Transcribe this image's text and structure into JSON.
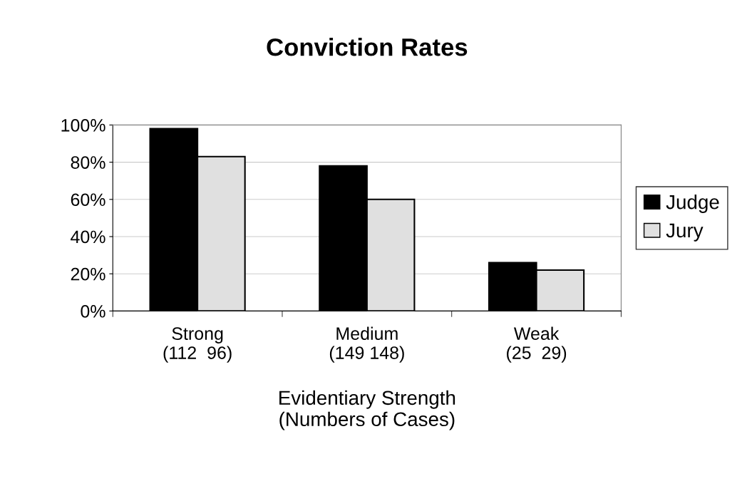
{
  "chart_data": {
    "type": "bar",
    "title": "Conviction Rates",
    "xlabel": "Evidentiary Strength\n(Numbers of Cases)",
    "categories": [
      "Strong\n(112  96)",
      "Medium\n(149 148)",
      "Weak\n(25  29)"
    ],
    "series": [
      {
        "name": "Judge",
        "color": "#000000",
        "values": [
          98,
          78,
          26
        ]
      },
      {
        "name": "Jury",
        "color": "#e0e0e0",
        "values": [
          83,
          60,
          22
        ]
      }
    ],
    "ylim": [
      0,
      100
    ],
    "yticks": [
      {
        "value": 0,
        "label": "0%"
      },
      {
        "value": 20,
        "label": "20%"
      },
      {
        "value": 40,
        "label": "40%"
      },
      {
        "value": 60,
        "label": "60%"
      },
      {
        "value": 80,
        "label": "80%"
      },
      {
        "value": 100,
        "label": "100%"
      }
    ],
    "grid": "y",
    "legend": "right"
  }
}
